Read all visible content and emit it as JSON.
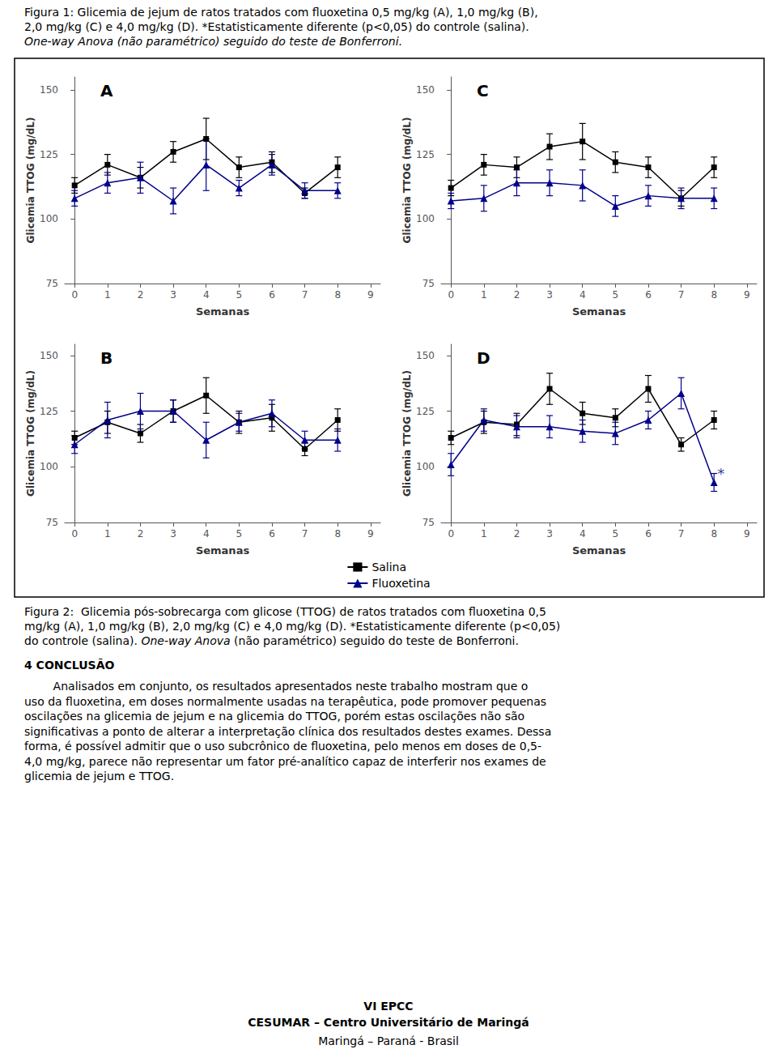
{
  "header": [
    "Figura 1: Glicemia de jejum de ratos tratados com fluoxetina 0,5 mg/kg (A), 1,0 mg/kg (B),",
    "2,0 mg/kg (C) e 4,0 mg/kg (D). *Estatisticamente diferente (p<0,05) do controle (salina).",
    {
      "text": "One-way Anova (não paramétrico) seguido do teste de Bonferroni.",
      "italic": true
    }
  ],
  "chart_data": [
    {
      "type": "line",
      "title": "A",
      "xlabel": "Semanas",
      "ylabel": "Glicemia TTOG (mg/dL)",
      "x": [
        0,
        1,
        2,
        3,
        4,
        5,
        6,
        7,
        8
      ],
      "xlim": [
        -0.3,
        9.3
      ],
      "xticks": [
        0,
        1,
        2,
        3,
        4,
        5,
        6,
        7,
        8,
        9
      ],
      "ylim": [
        75,
        155
      ],
      "yticks": [
        75,
        100,
        125,
        150
      ],
      "grid": false,
      "legend": "bottom",
      "series": [
        {
          "name": "Salina",
          "color": "#000000",
          "marker": "square",
          "values": [
            113,
            121,
            116,
            126,
            131,
            120,
            122,
            110,
            120
          ],
          "errors": [
            3,
            4,
            4,
            4,
            8,
            4,
            4,
            2,
            4
          ]
        },
        {
          "name": "Fluoxetina",
          "color": "#00008B",
          "marker": "triangle",
          "values": [
            108,
            114,
            116,
            107,
            121,
            112,
            121,
            111,
            111
          ],
          "errors": [
            3,
            4,
            6,
            5,
            10,
            3,
            4,
            3,
            3
          ]
        }
      ]
    },
    {
      "type": "line",
      "title": "B",
      "xlabel": "Semanas",
      "ylabel": "Glicemia TTOG (mg/dL)",
      "x": [
        0,
        1,
        2,
        3,
        4,
        5,
        6,
        7,
        8
      ],
      "xlim": [
        -0.3,
        9.3
      ],
      "xticks": [
        0,
        1,
        2,
        3,
        4,
        5,
        6,
        7,
        8,
        9
      ],
      "ylim": [
        75,
        155
      ],
      "yticks": [
        75,
        100,
        125,
        150
      ],
      "grid": false,
      "legend": "bottom",
      "series": [
        {
          "name": "Salina",
          "color": "#000000",
          "marker": "square",
          "values": [
            113,
            120,
            115,
            125,
            132,
            120,
            122,
            108,
            121
          ],
          "errors": [
            3,
            5,
            4,
            5,
            8,
            5,
            6,
            3,
            5
          ]
        },
        {
          "name": "Fluoxetina",
          "color": "#00008B",
          "marker": "triangle",
          "values": [
            110,
            121,
            125,
            125,
            112,
            120,
            124,
            112,
            112
          ],
          "errors": [
            4,
            8,
            8,
            5,
            8,
            4,
            6,
            4,
            5
          ]
        }
      ]
    },
    {
      "type": "line",
      "title": "C",
      "xlabel": "Semanas",
      "ylabel": "Glicemia TTOG (mg/dL)",
      "x": [
        0,
        1,
        2,
        3,
        4,
        5,
        6,
        7,
        8
      ],
      "xlim": [
        -0.3,
        9.3
      ],
      "xticks": [
        0,
        1,
        2,
        3,
        4,
        5,
        6,
        7,
        8,
        9
      ],
      "ylim": [
        75,
        155
      ],
      "yticks": [
        75,
        100,
        125,
        150
      ],
      "grid": false,
      "legend": "bottom",
      "series": [
        {
          "name": "Salina",
          "color": "#000000",
          "marker": "square",
          "values": [
            112,
            121,
            120,
            128,
            130,
            122,
            120,
            108,
            120
          ],
          "errors": [
            3,
            4,
            4,
            5,
            7,
            4,
            4,
            3,
            4
          ]
        },
        {
          "name": "Fluoxetina",
          "color": "#00008B",
          "marker": "triangle",
          "values": [
            107,
            108,
            114,
            114,
            113,
            105,
            109,
            108,
            108
          ],
          "errors": [
            3,
            5,
            5,
            5,
            6,
            4,
            4,
            4,
            4
          ]
        }
      ]
    },
    {
      "type": "line",
      "title": "D",
      "xlabel": "Semanas",
      "ylabel": "Glicemia TTOG (mg/dL)",
      "x": [
        0,
        1,
        2,
        3,
        4,
        5,
        6,
        7,
        8
      ],
      "xlim": [
        -0.3,
        9.3
      ],
      "xticks": [
        0,
        1,
        2,
        3,
        4,
        5,
        6,
        7,
        8,
        9
      ],
      "ylim": [
        75,
        155
      ],
      "yticks": [
        75,
        100,
        125,
        150
      ],
      "grid": false,
      "legend": "bottom",
      "series": [
        {
          "name": "Salina",
          "color": "#000000",
          "marker": "square",
          "values": [
            113,
            120,
            119,
            135,
            124,
            122,
            135,
            110,
            121
          ],
          "errors": [
            3,
            5,
            5,
            7,
            5,
            4,
            6,
            3,
            4
          ]
        },
        {
          "name": "Fluoxetina",
          "color": "#00008B",
          "marker": "triangle",
          "values": [
            101,
            121,
            118,
            118,
            116,
            115,
            121,
            133,
            93
          ],
          "errors": [
            5,
            5,
            5,
            5,
            5,
            5,
            4,
            7,
            4
          ]
        }
      ],
      "annotations": [
        {
          "x": 8,
          "y": 97,
          "text": "*",
          "color": "#00008B"
        }
      ]
    }
  ],
  "caption": [
    "Figura 2:  Glicemia pós-sobrecarga com glicose (TTOG) de ratos tratados com fluoxetina 0,5",
    "mg/kg (A), 1,0 mg/kg (B), 2,0 mg/kg (C) e 4,0 mg/kg (D). *Estatisticamente diferente (p<0,05)",
    [
      {
        "text": "do controle (salina). "
      },
      {
        "text": "One-way Anova",
        "italic": true
      },
      {
        "text": " (não paramétrico) seguido do teste de Bonferroni."
      }
    ]
  ],
  "conclusion_title": {
    "text": "4 CONCLUSÃO",
    "bold": true
  },
  "conclusion": [
    "        Analisados em conjunto, os resultados apresentados neste trabalho mostram que o",
    "uso da fluoxetina, em doses normalmente usadas na terapêutica, pode promover pequenas",
    "oscilações na glicemia de jejum e na glicemia do TTOG, porém estas oscilações não são",
    "significativas a ponto de alterar a interpretação clínica dos resultados destes exames. Dessa",
    "forma, é possível admitir que o uso subcrônico de fluoxetina, pelo menos em doses de 0,5-",
    "4,0 mg/kg, parece não representar um fator pré-analítico capaz de interferir nos exames de",
    "glicemia de jejum e TTOG."
  ],
  "footer": [
    {
      "text": "VI EPCC",
      "bold": true
    },
    {
      "text": "CESUMAR – Centro Universitário de Maringá",
      "bold": true
    },
    {
      "text": "Maringá – Paraná - Brasil"
    }
  ]
}
